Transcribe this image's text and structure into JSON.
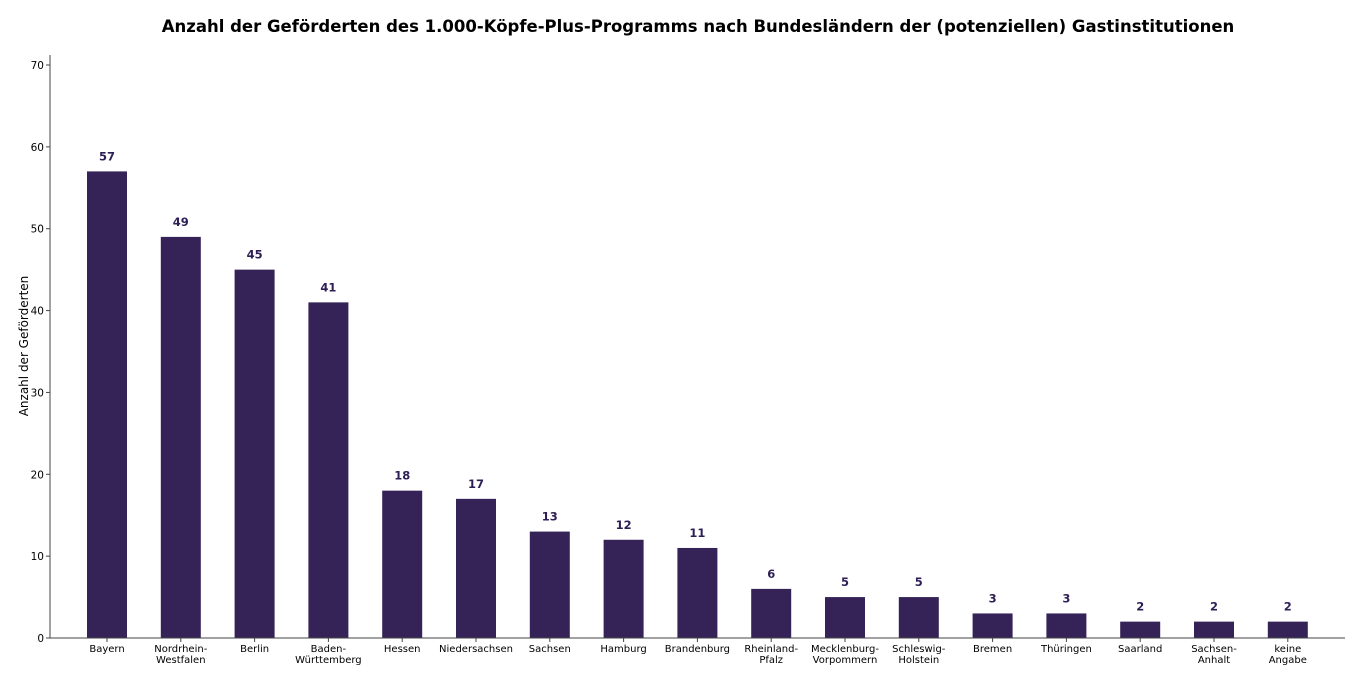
{
  "chart_data": {
    "type": "bar",
    "title": "Anzahl der Geförderten des 1.000-Köpfe-Plus-Programms nach Bundesländern der (potenziellen) Gastinstitutionen",
    "xlabel": "",
    "ylabel": "Anzahl der Geförderten",
    "ylim": [
      0,
      70
    ],
    "yticks": [
      0,
      10,
      20,
      30,
      40,
      50,
      60,
      70
    ],
    "grid": false,
    "bar_color": "#352257",
    "label_color": "#2d1f55",
    "categories": [
      "Bayern",
      "Nordrhein-\nWestfalen",
      "Berlin",
      "Baden-\nWürttemberg",
      "Hessen",
      "Niedersachsen",
      "Sachsen",
      "Hamburg",
      "Brandenburg",
      "Rheinland-\nPfalz",
      "Mecklenburg-\nVorpommern",
      "Schleswig-\nHolstein",
      "Bremen",
      "Thüringen",
      "Saarland",
      "Sachsen-\nAnhalt",
      "keine\nAngabe"
    ],
    "values": [
      57,
      49,
      45,
      41,
      18,
      17,
      13,
      12,
      11,
      6,
      5,
      5,
      3,
      3,
      2,
      2,
      2
    ],
    "data_labels": [
      "57",
      "49",
      "45",
      "41",
      "18",
      "17",
      "13",
      "12",
      "11",
      "6",
      "5",
      "5",
      "3",
      "3",
      "2",
      "2",
      "2"
    ]
  }
}
